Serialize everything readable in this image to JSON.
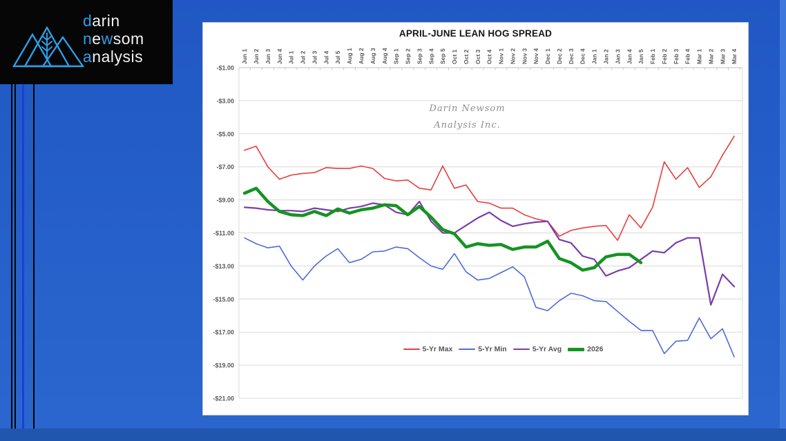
{
  "desktop": {
    "background_top": "#2057c4",
    "background_bottom": "#2b67ce",
    "taskbar_color": "#2156ae",
    "right_strip_color": "#3d77db",
    "accent_line_color": "#1c3eda"
  },
  "logo": {
    "accent_color": "#2d9fe8",
    "word1_accent": "d",
    "word1_rest": "arin",
    "word2_accent1": "n",
    "word2_mid": "e",
    "word2_accent2": "w",
    "word2_rest": "som",
    "word3_accent": "a",
    "word3_rest": "nalysis"
  },
  "chart_data": {
    "type": "line",
    "title": "APRIL-JUNE LEAN HOG SPREAD",
    "watermark_line1": "Darin Newsom",
    "watermark_line2": "Analysis Inc.",
    "xlabel": "",
    "ylabel": "",
    "ylim": [
      -21,
      -1
    ],
    "grid": true,
    "legend_position": "bottom",
    "categories": [
      "Jun 1",
      "Jun 2",
      "Jun 3",
      "Jun 4",
      "Jul 1",
      "Jul 2",
      "Jul 3",
      "Jul 4",
      "Jul 5",
      "Aug 1",
      "Aug 2",
      "Aug 3",
      "Aug 4",
      "Sep 1",
      "Sep 2",
      "Sep 3",
      "Sep 4",
      "Sep 5",
      "Oct 1",
      "Oct 2",
      "Oct 3",
      "Oct 4",
      "Nov 1",
      "Nov 2",
      "Nov 3",
      "Nov 4",
      "Dec 1",
      "Dec 2",
      "Dec 3",
      "Dec 4",
      "Jan 1",
      "Jan 2",
      "Jan 3",
      "Jan 4",
      "Jan 5",
      "Feb 1",
      "Feb 2",
      "Feb 3",
      "Feb 4",
      "Mar 1",
      "Mar 2",
      "Mar 3",
      "Mar 4"
    ],
    "y_ticks": [
      {
        "value": -1,
        "label": "-$1.00"
      },
      {
        "value": -3,
        "label": "-$3.00"
      },
      {
        "value": -5,
        "label": "-$5.00"
      },
      {
        "value": -7,
        "label": "-$7.00"
      },
      {
        "value": -9,
        "label": "-$9.00"
      },
      {
        "value": -11,
        "label": "-$11.00"
      },
      {
        "value": -13,
        "label": "-$13.00"
      },
      {
        "value": -15,
        "label": "-$15.00"
      },
      {
        "value": -17,
        "label": "-$17.00"
      },
      {
        "value": -19,
        "label": "-$19.00"
      },
      {
        "value": -21,
        "label": "-$21.00"
      }
    ],
    "series": [
      {
        "name": "5-Yr Max",
        "color": "#e63e3e",
        "width": 1.6,
        "values": [
          -6.0,
          -5.75,
          -7.0,
          -7.75,
          -7.5,
          -7.4,
          -7.35,
          -7.05,
          -7.1,
          -7.1,
          -6.95,
          -7.1,
          -7.7,
          -7.85,
          -7.8,
          -8.3,
          -8.4,
          -6.95,
          -8.3,
          -8.1,
          -9.1,
          -9.2,
          -9.5,
          -9.5,
          -9.9,
          -10.15,
          -10.3,
          -11.2,
          -10.85,
          -10.7,
          -10.6,
          -10.55,
          -11.45,
          -9.9,
          -10.7,
          -9.45,
          -6.7,
          -7.75,
          -7.05,
          -8.25,
          -7.6,
          -6.3,
          -5.15
        ]
      },
      {
        "name": "5-Yr Min",
        "color": "#4b6bdb",
        "width": 1.6,
        "values": [
          -11.3,
          -11.65,
          -11.9,
          -11.8,
          -13.0,
          -13.85,
          -13.0,
          -12.4,
          -11.95,
          -12.8,
          -12.6,
          -12.15,
          -12.1,
          -11.85,
          -11.95,
          -12.5,
          -13.0,
          -13.2,
          -12.25,
          -13.35,
          -13.85,
          -13.75,
          -13.4,
          -13.05,
          -13.65,
          -15.5,
          -15.7,
          -15.1,
          -14.65,
          -14.8,
          -15.1,
          -15.15,
          -15.75,
          -16.35,
          -16.9,
          -16.9,
          -18.3,
          -17.55,
          -17.5,
          -16.15,
          -17.4,
          -16.8,
          -18.5
        ]
      },
      {
        "name": "5-Yr Avg",
        "color": "#7a3da8",
        "width": 2.2,
        "values": [
          -9.45,
          -9.5,
          -9.6,
          -9.65,
          -9.65,
          -9.7,
          -9.5,
          -9.6,
          -9.7,
          -9.5,
          -9.4,
          -9.2,
          -9.3,
          -9.75,
          -9.9,
          -9.1,
          -10.3,
          -11.0,
          -11.0,
          -10.55,
          -10.1,
          -9.75,
          -10.25,
          -10.6,
          -10.45,
          -10.35,
          -10.3,
          -11.4,
          -11.6,
          -12.4,
          -12.6,
          -13.6,
          -13.3,
          -13.1,
          -12.6,
          -12.1,
          -12.2,
          -11.6,
          -11.3,
          -11.3,
          -15.35,
          -13.5,
          -14.25
        ]
      },
      {
        "name": "2026",
        "color": "#149422",
        "width": 4.5,
        "values": [
          -8.6,
          -8.3,
          -9.1,
          -9.7,
          -9.9,
          -9.95,
          -9.7,
          -9.95,
          -9.55,
          -9.8,
          -9.6,
          -9.5,
          -9.3,
          -9.35,
          -9.9,
          -9.4,
          -10.05,
          -10.8,
          -11.05,
          -11.85,
          -11.65,
          -11.75,
          -11.7,
          -12.0,
          -11.85,
          -11.85,
          -11.5,
          -12.55,
          -12.8,
          -13.25,
          -13.1,
          -12.45,
          -12.3,
          -12.3,
          -12.8
        ]
      }
    ]
  }
}
